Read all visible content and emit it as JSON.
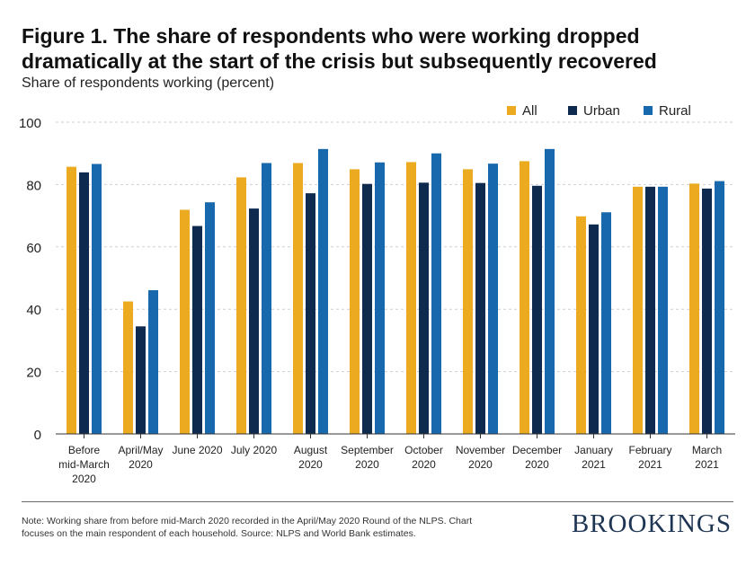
{
  "header": {
    "title_line1": "Figure 1. The share of respondents who were working dropped",
    "title_line2": "dramatically at the start of the crisis but subsequently recovered",
    "subtitle": "Share of respondents working (percent)"
  },
  "footer": {
    "note_line1": "Note: Working share from before mid-March 2020 recorded in the April/May 2020 Round of the NLPS. Chart",
    "note_line2": "focuses on the main respondent of each household. Source: NLPS and World Bank estimates.",
    "brand": "BROOKINGS"
  },
  "colors": {
    "all": "#EBAA20",
    "urban": "#0E2A4F",
    "rural": "#1768AC"
  },
  "chart_data": {
    "type": "bar",
    "title": "Figure 1. The share of respondents who were working dropped dramatically at the start of the crisis but subsequently recovered",
    "ylabel": "Share of respondents working (percent)",
    "xlabel": "",
    "ylim": [
      0,
      100
    ],
    "yticks": [
      0,
      20,
      40,
      60,
      80,
      100
    ],
    "grid": true,
    "legend_position": "top-right",
    "categories": [
      [
        "Before",
        "mid-March",
        "2020"
      ],
      [
        "April/May",
        "2020"
      ],
      [
        "June 2020"
      ],
      [
        "July 2020"
      ],
      [
        "August",
        "2020"
      ],
      [
        "September",
        "2020"
      ],
      [
        "October",
        "2020"
      ],
      [
        "November",
        "2020"
      ],
      [
        "December",
        "2020"
      ],
      [
        "January",
        "2021"
      ],
      [
        "February",
        "2021"
      ],
      [
        "March",
        "2021"
      ]
    ],
    "series": [
      {
        "name": "All",
        "values": [
          85.7,
          42.5,
          71.9,
          82.3,
          86.9,
          84.9,
          87.2,
          84.9,
          87.5,
          69.8,
          79.3,
          80.3
        ]
      },
      {
        "name": "Urban",
        "values": [
          83.9,
          34.5,
          66.7,
          72.3,
          77.2,
          80.2,
          80.6,
          80.5,
          79.6,
          67.2,
          79.3,
          78.7
        ]
      },
      {
        "name": "Rural",
        "values": [
          86.6,
          46.1,
          74.3,
          86.9,
          91.4,
          87.1,
          90.0,
          86.7,
          91.4,
          71.1,
          79.3,
          81.1
        ]
      }
    ]
  }
}
